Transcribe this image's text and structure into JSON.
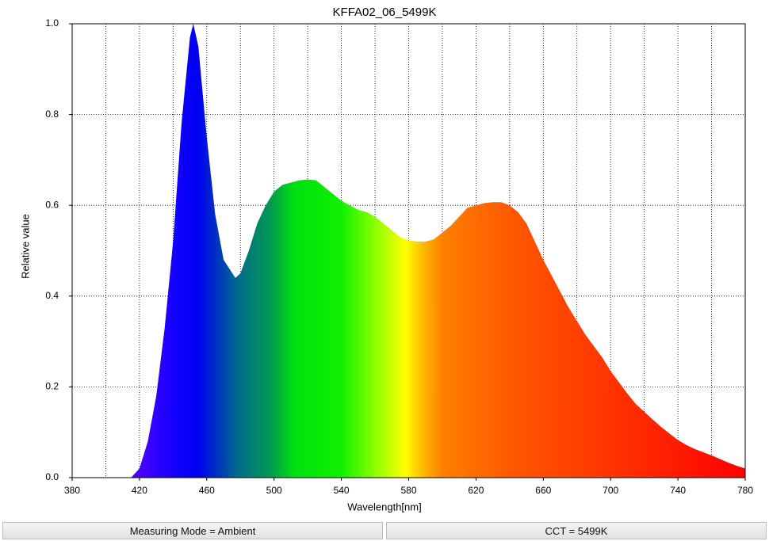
{
  "chart_data": {
    "type": "area",
    "title": "KFFA02_06_5499K",
    "x_label": "Wavelength[nm]",
    "y_label": "Relative value",
    "xlim": [
      380,
      780
    ],
    "ylim": [
      0,
      1
    ],
    "xticks": [
      380,
      420,
      460,
      500,
      540,
      580,
      620,
      660,
      700,
      740,
      780
    ],
    "x_grid": [
      400,
      420,
      440,
      460,
      480,
      500,
      520,
      540,
      560,
      580,
      600,
      620,
      640,
      660,
      680,
      700,
      720,
      740,
      760
    ],
    "yticks": [
      {
        "value": 0,
        "label": "0.0"
      },
      0.2,
      0.4,
      0.6,
      0.8,
      {
        "value": 1,
        "label": "1.0"
      }
    ],
    "grid": true,
    "fill_gradient": [
      {
        "wavelength": 420,
        "color": "#4a00ff"
      },
      {
        "wavelength": 440,
        "color": "#1400ff"
      },
      {
        "wavelength": 455,
        "color": "#0000f0"
      },
      {
        "wavelength": 478,
        "color": "#006a8c"
      },
      {
        "wavelength": 498,
        "color": "#009a50"
      },
      {
        "wavelength": 512,
        "color": "#00e010"
      },
      {
        "wavelength": 540,
        "color": "#10f000"
      },
      {
        "wavelength": 560,
        "color": "#8cff00"
      },
      {
        "wavelength": 578,
        "color": "#ffff00"
      },
      {
        "wavelength": 590,
        "color": "#ffb000"
      },
      {
        "wavelength": 600,
        "color": "#ff8000"
      },
      {
        "wavelength": 640,
        "color": "#ff5800"
      },
      {
        "wavelength": 700,
        "color": "#ff3400"
      },
      {
        "wavelength": 780,
        "color": "#ff0000"
      }
    ],
    "x": [
      415,
      420,
      425,
      430,
      435,
      440,
      445,
      450,
      452,
      455,
      460,
      465,
      470,
      477,
      480,
      485,
      490,
      495,
      500,
      505,
      510,
      515,
      520,
      525,
      530,
      535,
      540,
      545,
      550,
      555,
      560,
      565,
      570,
      575,
      580,
      585,
      590,
      595,
      600,
      605,
      610,
      615,
      620,
      625,
      630,
      635,
      640,
      645,
      650,
      655,
      660,
      665,
      670,
      675,
      680,
      685,
      690,
      695,
      700,
      705,
      710,
      715,
      720,
      725,
      730,
      735,
      740,
      745,
      750,
      755,
      760,
      765,
      770,
      775,
      780
    ],
    "values": [
      0,
      0.02,
      0.08,
      0.18,
      0.33,
      0.52,
      0.78,
      0.97,
      1.0,
      0.95,
      0.75,
      0.58,
      0.48,
      0.44,
      0.45,
      0.5,
      0.56,
      0.6,
      0.63,
      0.645,
      0.65,
      0.655,
      0.657,
      0.655,
      0.64,
      0.625,
      0.61,
      0.6,
      0.59,
      0.585,
      0.575,
      0.56,
      0.545,
      0.53,
      0.523,
      0.52,
      0.52,
      0.525,
      0.54,
      0.555,
      0.575,
      0.595,
      0.6,
      0.605,
      0.607,
      0.607,
      0.6,
      0.585,
      0.56,
      0.52,
      0.48,
      0.445,
      0.41,
      0.375,
      0.345,
      0.315,
      0.29,
      0.265,
      0.235,
      0.21,
      0.185,
      0.162,
      0.145,
      0.128,
      0.112,
      0.097,
      0.083,
      0.072,
      0.063,
      0.056,
      0.049,
      0.041,
      0.033,
      0.026,
      0.02
    ]
  },
  "status_bar": {
    "left": "Measuring Mode = Ambient",
    "right": "CCT = 5499K"
  }
}
